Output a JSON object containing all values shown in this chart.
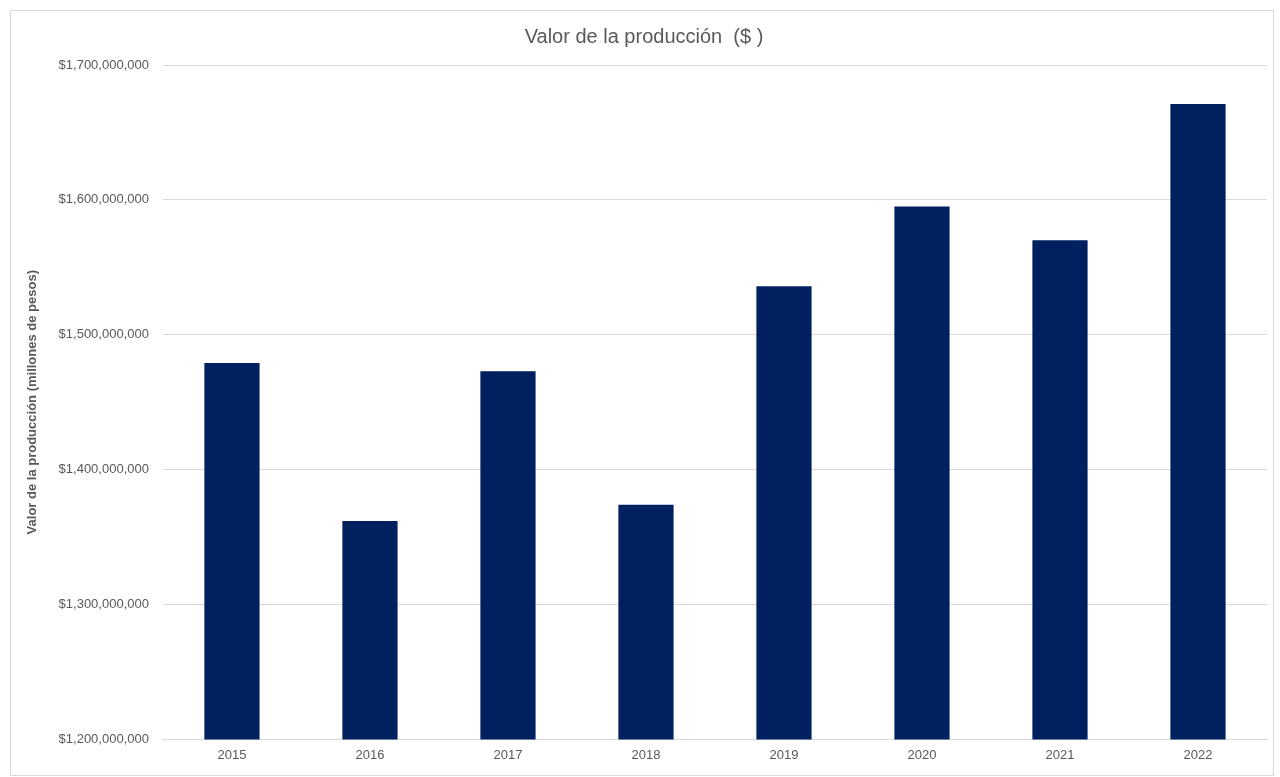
{
  "chart_data": {
    "type": "bar",
    "title": "Valor de la producción  ($ )",
    "ylabel": "Valor de la producción (millones de pesos)",
    "categories": [
      "2015",
      "2016",
      "2017",
      "2018",
      "2019",
      "2020",
      "2021",
      "2022"
    ],
    "series": [
      {
        "color": "#002060",
        "values": [
          1479000000,
          1362000000,
          1473000000,
          1374000000,
          1536000000,
          1595000000,
          1570000000,
          1671000000
        ]
      }
    ],
    "ylim": [
      1200000000,
      1700000000
    ],
    "yticks": [
      {
        "value": 1200000000,
        "label": "$1,200,000,000"
      },
      {
        "value": 1300000000,
        "label": "$1,300,000,000"
      },
      {
        "value": 1400000000,
        "label": "$1,400,000,000"
      },
      {
        "value": 1500000000,
        "label": "$1,500,000,000"
      },
      {
        "value": 1600000000,
        "label": "$1,600,000,000"
      },
      {
        "value": 1700000000,
        "label": "$1,700,000,000"
      }
    ],
    "grid": "y",
    "legend": false
  }
}
